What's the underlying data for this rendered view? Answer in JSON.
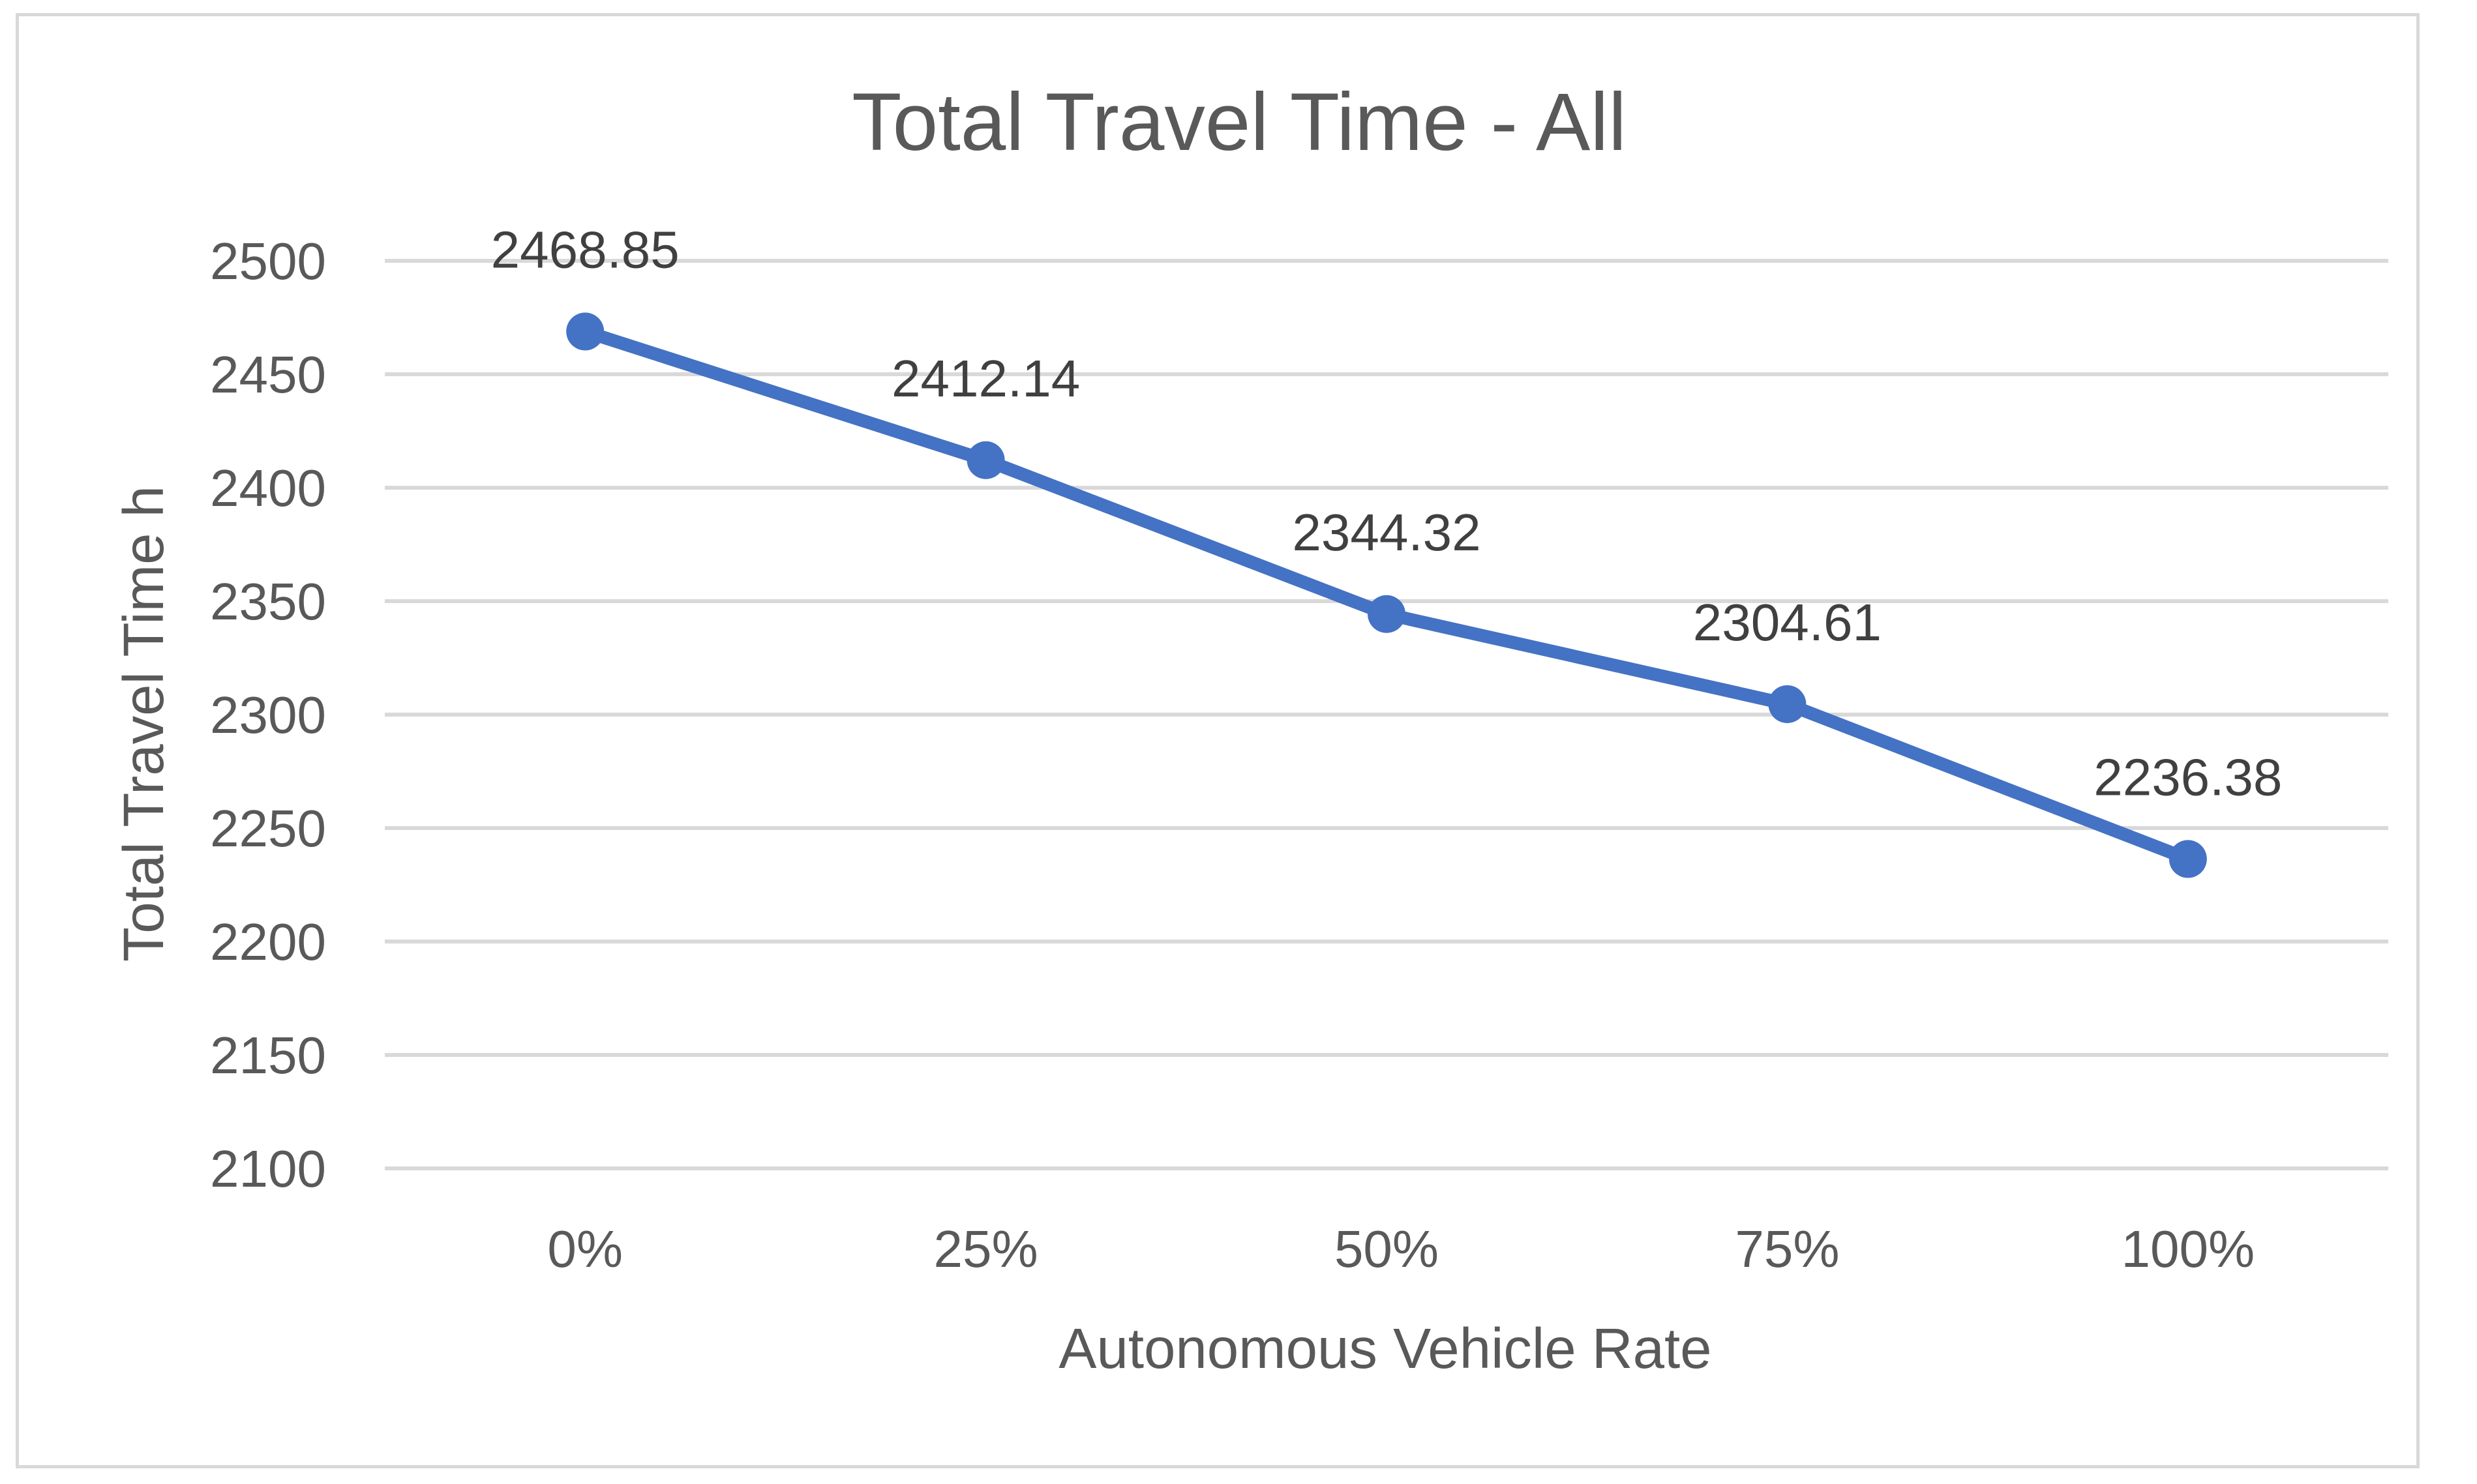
{
  "chart_data": {
    "type": "line",
    "title": "Total Travel Time - All",
    "xlabel": "Autonomous Vehicle Rate",
    "ylabel": "Total Travel Time  h",
    "categories": [
      "0%",
      "25%",
      "50%",
      "75%",
      "100%"
    ],
    "series": [
      {
        "values": [
          2468.85,
          2412.14,
          2344.32,
          2304.61,
          2236.38
        ],
        "data_labels": [
          "2468.85",
          "2412.14",
          "2344.32",
          "2304.61",
          "2236.38"
        ]
      }
    ],
    "ylim": [
      2100,
      2500
    ],
    "yticks": [
      2100,
      2150,
      2200,
      2250,
      2300,
      2350,
      2400,
      2450,
      2500
    ],
    "ytick_labels": [
      "2100",
      "2150",
      "2200",
      "2250",
      "2300",
      "2350",
      "2400",
      "2450",
      "2500"
    ],
    "grid": "horizontal",
    "legend": "none",
    "colors": {
      "line": "#4472c4",
      "grid": "#d9d9d9",
      "text": "#595959",
      "label": "#404040",
      "border": "#d9d9d9"
    }
  }
}
